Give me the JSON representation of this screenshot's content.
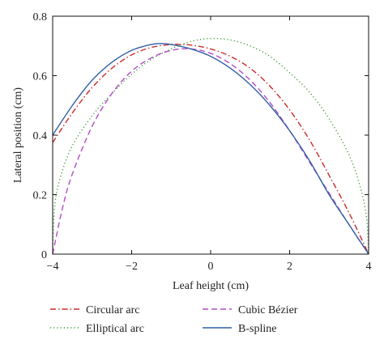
{
  "chart_data": {
    "type": "line",
    "title": "",
    "xlabel": "Leaf height (cm)",
    "ylabel": "Lateral position (cm)",
    "xlim": [
      -4,
      4
    ],
    "ylim": [
      0,
      0.8
    ],
    "xticks": [
      -4,
      -2,
      0,
      2,
      4
    ],
    "yticks": [
      0,
      0.2,
      0.4,
      0.6,
      0.8
    ],
    "xtick_labels": [
      "−4",
      "−2",
      "0",
      "2",
      "4"
    ],
    "ytick_labels": [
      "0",
      "0.2",
      "0.4",
      "0.6",
      "0.8"
    ],
    "grid": false,
    "legend_position": "below",
    "series": [
      {
        "name": "Circular arc",
        "color": "#cc2b2b",
        "dash": "dash-dot",
        "x": [
          -4.0,
          -3.5,
          -3.0,
          -2.5,
          -2.0,
          -1.5,
          -1.0,
          -0.75,
          -0.5,
          0.0,
          0.5,
          1.0,
          1.5,
          2.0,
          2.5,
          3.0,
          3.5,
          4.0
        ],
        "y": [
          0.375,
          0.475,
          0.56,
          0.625,
          0.67,
          0.695,
          0.705,
          0.705,
          0.703,
          0.69,
          0.665,
          0.625,
          0.565,
          0.485,
          0.385,
          0.265,
          0.14,
          0.0
        ]
      },
      {
        "name": "Elliptical arc",
        "color": "#3d9a3d",
        "dash": "dotted",
        "x": [
          -4.0,
          -3.95,
          -3.8,
          -3.5,
          -3.0,
          -2.5,
          -2.0,
          -1.5,
          -1.0,
          -0.5,
          0.0,
          0.5,
          1.0,
          1.5,
          2.0,
          2.5,
          3.0,
          3.5,
          3.8,
          3.95,
          4.0
        ],
        "y": [
          0.0,
          0.16,
          0.26,
          0.365,
          0.465,
          0.54,
          0.605,
          0.655,
          0.69,
          0.715,
          0.725,
          0.72,
          0.7,
          0.665,
          0.61,
          0.545,
          0.455,
          0.335,
          0.22,
          0.12,
          0.0
        ]
      },
      {
        "name": "Cubic Bézier",
        "color": "#b44cc9",
        "dash": "dashed",
        "x": [
          -4.0,
          -3.75,
          -3.5,
          -3.0,
          -2.5,
          -2.0,
          -1.5,
          -1.0,
          -0.5,
          0.0,
          0.5,
          1.0,
          1.5,
          2.0,
          2.5,
          3.0,
          3.5,
          4.0
        ],
        "y": [
          0.0,
          0.155,
          0.27,
          0.43,
          0.54,
          0.615,
          0.66,
          0.685,
          0.69,
          0.675,
          0.64,
          0.585,
          0.51,
          0.415,
          0.31,
          0.205,
          0.1,
          0.0
        ]
      },
      {
        "name": "B-spline",
        "color": "#2f5fa8",
        "dash": "solid",
        "x": [
          -4.0,
          -3.5,
          -3.0,
          -2.5,
          -2.0,
          -1.5,
          -1.25,
          -1.0,
          -0.5,
          0.0,
          0.5,
          1.0,
          1.5,
          2.0,
          2.5,
          3.0,
          3.5,
          4.0
        ],
        "y": [
          0.4,
          0.5,
          0.585,
          0.645,
          0.685,
          0.705,
          0.708,
          0.705,
          0.69,
          0.665,
          0.625,
          0.57,
          0.5,
          0.415,
          0.315,
          0.2,
          0.1,
          0.0
        ]
      }
    ]
  }
}
